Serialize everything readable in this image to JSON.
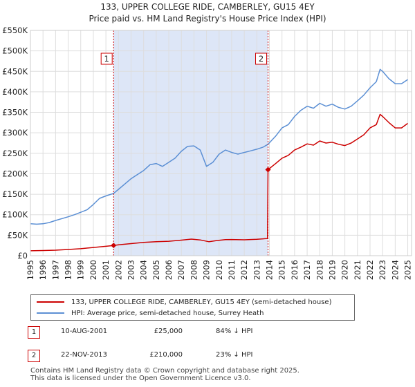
{
  "chart_data": {
    "type": "line",
    "title": "133, UPPER COLLEGE RIDE, CAMBERLEY, GU15 4EY",
    "subtitle": "Price paid vs. HM Land Registry's House Price Index (HPI)",
    "xlim": [
      1995,
      2025.3
    ],
    "ylim": [
      0,
      550000
    ],
    "x_ticks": [
      1995,
      1996,
      1997,
      1998,
      1999,
      2000,
      2001,
      2002,
      2003,
      2004,
      2005,
      2006,
      2007,
      2008,
      2009,
      2010,
      2011,
      2012,
      2013,
      2014,
      2015,
      2016,
      2017,
      2018,
      2019,
      2020,
      2021,
      2022,
      2023,
      2024,
      2025
    ],
    "y_ticks": [
      {
        "value": 0,
        "label": "£0"
      },
      {
        "value": 50000,
        "label": "£50K"
      },
      {
        "value": 100000,
        "label": "£100K"
      },
      {
        "value": 150000,
        "label": "£150K"
      },
      {
        "value": 200000,
        "label": "£200K"
      },
      {
        "value": 250000,
        "label": "£250K"
      },
      {
        "value": 300000,
        "label": "£300K"
      },
      {
        "value": 350000,
        "label": "£350K"
      },
      {
        "value": 400000,
        "label": "£400K"
      },
      {
        "value": 450000,
        "label": "£450K"
      },
      {
        "value": 500000,
        "label": "£500K"
      },
      {
        "value": 550000,
        "label": "£550K"
      }
    ],
    "shaded_region": [
      2001.61,
      2013.89
    ],
    "series": [
      {
        "name": "133, UPPER COLLEGE RIDE, CAMBERLEY, GU15 4EY (semi-detached house)",
        "color": "#cc0000",
        "points": [
          [
            1995.0,
            12000
          ],
          [
            1996.0,
            12600
          ],
          [
            1997.0,
            13500
          ],
          [
            1998.0,
            15200
          ],
          [
            1999.0,
            17000
          ],
          [
            2000.0,
            20000
          ],
          [
            2001.0,
            23000
          ],
          [
            2001.61,
            25000
          ],
          [
            2002.0,
            26700
          ],
          [
            2003.0,
            29500
          ],
          [
            2004.0,
            32500
          ],
          [
            2005.0,
            34000
          ],
          [
            2006.0,
            35200
          ],
          [
            2007.0,
            38000
          ],
          [
            2007.8,
            40500
          ],
          [
            2008.5,
            38500
          ],
          [
            2009.2,
            34000
          ],
          [
            2009.8,
            37000
          ],
          [
            2010.5,
            39200
          ],
          [
            2011.0,
            39500
          ],
          [
            2012.0,
            38800
          ],
          [
            2013.0,
            40000
          ],
          [
            2013.85,
            42000
          ],
          [
            2013.89,
            210000
          ],
          [
            2014.5,
            225000
          ],
          [
            2015.0,
            238000
          ],
          [
            2015.5,
            245000
          ],
          [
            2016.0,
            258000
          ],
          [
            2016.5,
            265000
          ],
          [
            2017.0,
            273000
          ],
          [
            2017.5,
            270000
          ],
          [
            2018.0,
            280000
          ],
          [
            2018.5,
            275000
          ],
          [
            2019.0,
            277000
          ],
          [
            2019.5,
            272000
          ],
          [
            2020.0,
            269000
          ],
          [
            2020.5,
            275000
          ],
          [
            2021.0,
            285000
          ],
          [
            2021.5,
            295000
          ],
          [
            2022.0,
            312000
          ],
          [
            2022.5,
            320000
          ],
          [
            2022.8,
            345000
          ],
          [
            2023.0,
            340000
          ],
          [
            2023.5,
            325000
          ],
          [
            2024.0,
            312000
          ],
          [
            2024.5,
            312000
          ],
          [
            2025.0,
            323000
          ]
        ]
      },
      {
        "name": "HPI: Average price, semi-detached house, Surrey Heath",
        "color": "#5b8fd4",
        "points": [
          [
            1995.0,
            78000
          ],
          [
            1995.5,
            77000
          ],
          [
            1996.0,
            78000
          ],
          [
            1996.5,
            81000
          ],
          [
            1997.0,
            86000
          ],
          [
            1998.0,
            95000
          ],
          [
            1998.5,
            100000
          ],
          [
            1999.0,
            106000
          ],
          [
            1999.5,
            112000
          ],
          [
            2000.0,
            125000
          ],
          [
            2000.5,
            140000
          ],
          [
            2001.0,
            146000
          ],
          [
            2001.61,
            152000
          ],
          [
            2002.0,
            162000
          ],
          [
            2002.5,
            175000
          ],
          [
            2003.0,
            188000
          ],
          [
            2003.5,
            198000
          ],
          [
            2004.0,
            208000
          ],
          [
            2004.5,
            222000
          ],
          [
            2005.0,
            225000
          ],
          [
            2005.5,
            218000
          ],
          [
            2006.0,
            228000
          ],
          [
            2006.5,
            238000
          ],
          [
            2007.0,
            255000
          ],
          [
            2007.5,
            267000
          ],
          [
            2008.0,
            268000
          ],
          [
            2008.5,
            258000
          ],
          [
            2009.0,
            218000
          ],
          [
            2009.5,
            228000
          ],
          [
            2010.0,
            248000
          ],
          [
            2010.5,
            258000
          ],
          [
            2011.0,
            252000
          ],
          [
            2011.5,
            248000
          ],
          [
            2012.0,
            252000
          ],
          [
            2012.5,
            256000
          ],
          [
            2013.0,
            260000
          ],
          [
            2013.5,
            265000
          ],
          [
            2013.89,
            272000
          ],
          [
            2014.5,
            292000
          ],
          [
            2015.0,
            312000
          ],
          [
            2015.5,
            320000
          ],
          [
            2016.0,
            340000
          ],
          [
            2016.5,
            355000
          ],
          [
            2017.0,
            365000
          ],
          [
            2017.5,
            360000
          ],
          [
            2018.0,
            372000
          ],
          [
            2018.5,
            365000
          ],
          [
            2019.0,
            370000
          ],
          [
            2019.5,
            362000
          ],
          [
            2020.0,
            358000
          ],
          [
            2020.5,
            365000
          ],
          [
            2021.0,
            378000
          ],
          [
            2021.5,
            392000
          ],
          [
            2022.0,
            410000
          ],
          [
            2022.5,
            425000
          ],
          [
            2022.8,
            455000
          ],
          [
            2023.0,
            450000
          ],
          [
            2023.5,
            432000
          ],
          [
            2024.0,
            420000
          ],
          [
            2024.5,
            420000
          ],
          [
            2025.0,
            430000
          ]
        ]
      }
    ],
    "sales": [
      {
        "num": "1",
        "x": 2001.61,
        "price": 25000,
        "date": "10-AUG-2001",
        "price_label": "£25,000",
        "hpi": "84% ↓ HPI"
      },
      {
        "num": "2",
        "x": 2013.89,
        "price": 210000,
        "date": "22-NOV-2013",
        "price_label": "£210,000",
        "hpi": "23% ↓ HPI"
      }
    ]
  },
  "legend": {
    "property": "133, UPPER COLLEGE RIDE, CAMBERLEY, GU15 4EY (semi-detached house)",
    "hpi": "HPI: Average price, semi-detached house, Surrey Heath"
  },
  "colors": {
    "property": "#cc0000",
    "hpi": "#5b8fd4",
    "shade": "#dde6f7",
    "grid": "#dddddd"
  },
  "footer": {
    "line1": "Contains HM Land Registry data © Crown copyright and database right 2025.",
    "line2": "This data is licensed under the Open Government Licence v3.0."
  }
}
